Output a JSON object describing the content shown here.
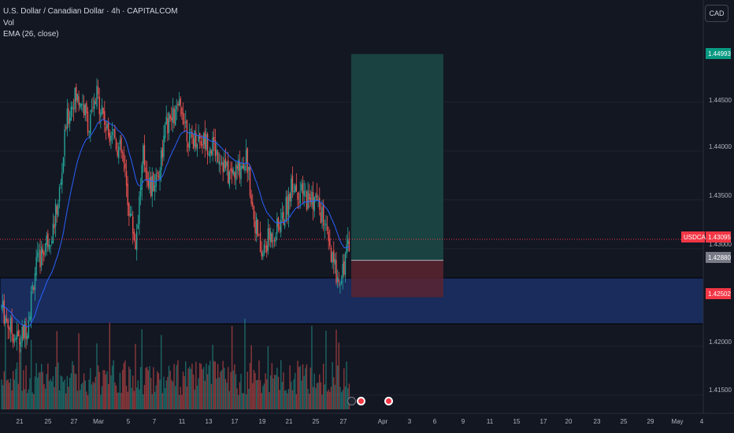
{
  "chart_data": {
    "type": "candlestick",
    "symbol": "USDCAD",
    "title": "U.S. Dollar / Canadian Dollar · 4h · CAPITALCOM",
    "indicators": [
      "Vol",
      "EMA (26, close)"
    ],
    "currency": "CAD",
    "ylim": [
      1.412,
      1.4555
    ],
    "y_ticks": [
      "1.44500",
      "1.44000",
      "1.43500",
      "1.43000",
      "1.42000",
      "1.41500"
    ],
    "x_ticks": [
      "21",
      "25",
      "27",
      "Mar",
      "5",
      "7",
      "11",
      "13",
      "17",
      "19",
      "21",
      "25",
      "27",
      "Apr",
      "3",
      "6",
      "9",
      "11",
      "15",
      "17",
      "20",
      "23",
      "25",
      "29",
      "May",
      "4"
    ],
    "last_price": 1.43095,
    "price_labels": {
      "symbol_tag": "USDCAD",
      "current": "1.43095",
      "take_profit": "1.44993",
      "entry": "1.42880",
      "stop": "1.42502"
    },
    "long_position": {
      "entry": 1.4288,
      "take_profit": 1.44993,
      "stop": 1.42502
    },
    "demand_zone": {
      "top": 1.427,
      "bottom": 1.4223
    },
    "colors": {
      "up": "#26a69a",
      "down": "#ef5350",
      "ema": "#2962ff",
      "background": "#131722"
    }
  }
}
